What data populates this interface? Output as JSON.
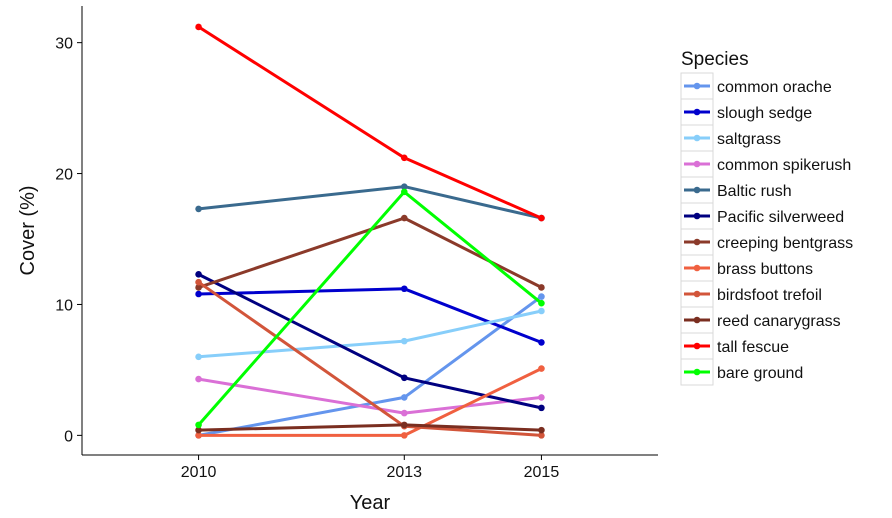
{
  "chart_data": {
    "type": "line",
    "xlabel": "Year",
    "ylabel": "Cover (%)",
    "x": [
      2010,
      2013,
      2015
    ],
    "xlim": [
      2008.3,
      2016.7
    ],
    "ylim": [
      -1.5,
      32.8
    ],
    "yticks": [
      0,
      10,
      20,
      30
    ],
    "grid": false,
    "legend_title": "Species",
    "legend_position": "right",
    "series": [
      {
        "name": "common orache",
        "color": "#6495ED",
        "values": [
          0.0,
          2.9,
          10.6
        ]
      },
      {
        "name": "slough sedge",
        "color": "#0000CD",
        "values": [
          10.8,
          11.2,
          7.1
        ]
      },
      {
        "name": "saltgrass",
        "color": "#87CEFA",
        "values": [
          6.0,
          7.2,
          9.5
        ]
      },
      {
        "name": "common spikerush",
        "color": "#DA70D6",
        "values": [
          4.3,
          1.7,
          2.9
        ]
      },
      {
        "name": "Baltic rush",
        "color": "#3A6A8E",
        "values": [
          17.3,
          19.0,
          16.6
        ]
      },
      {
        "name": "Pacific silverweed",
        "color": "#000080",
        "values": [
          12.3,
          4.4,
          2.1
        ]
      },
      {
        "name": "creeping bentgrass",
        "color": "#8B3A2A",
        "values": [
          11.3,
          16.6,
          11.3
        ]
      },
      {
        "name": "brass buttons",
        "color": "#F06040",
        "values": [
          0.0,
          0.0,
          5.1
        ]
      },
      {
        "name": "birdsfoot trefoil",
        "color": "#D2553A",
        "values": [
          11.7,
          0.7,
          0.0
        ]
      },
      {
        "name": "reed canarygrass",
        "color": "#7A2E20",
        "values": [
          0.4,
          0.8,
          0.4
        ]
      },
      {
        "name": "tall fescue",
        "color": "#FF0000",
        "values": [
          31.2,
          21.2,
          16.6
        ]
      },
      {
        "name": "bare ground",
        "color": "#00FF00",
        "values": [
          0.8,
          18.6,
          10.1
        ]
      }
    ]
  }
}
